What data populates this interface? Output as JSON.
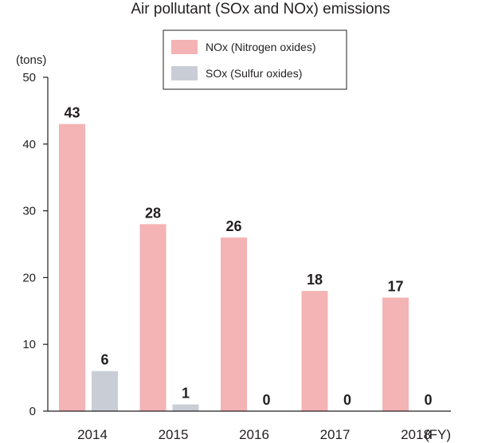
{
  "chart_data": {
    "type": "bar",
    "title": "Air pollutant (SOx and NOx) emissions",
    "ylabel": "(tons)",
    "x_unit": "(FY)",
    "categories": [
      "2014",
      "2015",
      "2016",
      "2017",
      "2018"
    ],
    "series": [
      {
        "name": "NOx (Nitrogen oxides)",
        "values": [
          43,
          28,
          26,
          18,
          17
        ],
        "color": "#f4b3b4"
      },
      {
        "name": "SOx (Sulfur oxides)",
        "values": [
          6,
          1,
          0,
          0,
          0
        ],
        "color": "#c9ced6"
      }
    ],
    "value_labels": [
      [
        "43",
        "28",
        "26",
        "18",
        "17"
      ],
      [
        "6",
        "1",
        "0",
        "0",
        "0"
      ]
    ],
    "yticks": [
      "0",
      "10",
      "20",
      "30",
      "40",
      "50"
    ],
    "ylim": [
      0,
      50
    ],
    "grid": false,
    "legend_position": "top-right"
  }
}
